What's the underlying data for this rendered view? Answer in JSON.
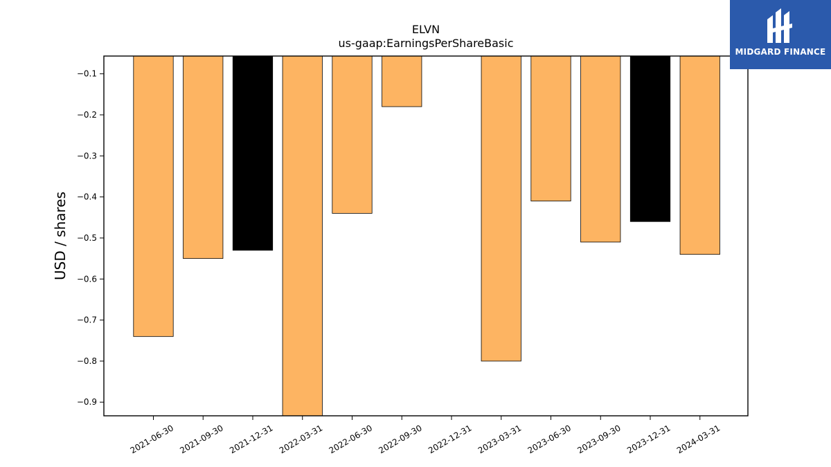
{
  "chart_data": {
    "type": "bar",
    "title": "ELVN",
    "subtitle": "us-gaap:EarningsPerShareBasic",
    "xlabel": "",
    "ylabel": "USD / shares",
    "categories": [
      "2021-06-30",
      "2021-09-30",
      "2021-12-31",
      "2022-03-31",
      "2022-06-30",
      "2022-09-30",
      "2022-12-31",
      "2023-03-31",
      "2023-06-30",
      "2023-09-30",
      "2023-12-31",
      "2024-03-31"
    ],
    "values": [
      -0.74,
      -0.55,
      -0.53,
      -0.95,
      -0.44,
      -0.18,
      null,
      -0.8,
      -0.41,
      -0.51,
      -0.46,
      -0.54
    ],
    "bar_colors": [
      "#fdb462",
      "#fdb462",
      "#000000",
      "#fdb462",
      "#fdb462",
      "#fdb462",
      "#fdb462",
      "#fdb462",
      "#fdb462",
      "#fdb462",
      "#000000",
      "#fdb462"
    ],
    "ylim": [
      -0.9333,
      -0.0567
    ],
    "yticks": [
      -0.1,
      -0.2,
      -0.3,
      -0.4,
      -0.5,
      -0.6,
      -0.7,
      -0.8,
      -0.9
    ],
    "ytick_labels": [
      "−0.1",
      "−0.2",
      "−0.3",
      "−0.4",
      "−0.5",
      "−0.6",
      "−0.7",
      "−0.8",
      "−0.9"
    ],
    "grid": false,
    "legend": "none"
  },
  "logo": {
    "text": "MIDGARD FINANCE",
    "background": "#2b5aac",
    "icon": "midgard-logo-icon"
  }
}
